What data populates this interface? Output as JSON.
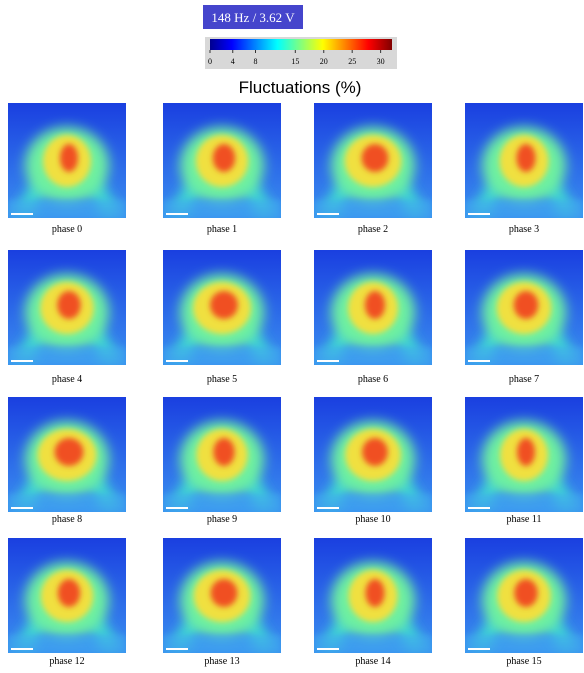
{
  "header": {
    "label": "148 Hz / 3.62 V"
  },
  "colorbar": {
    "title": "Fluctuations (%)",
    "range": [
      0,
      32
    ],
    "ticks": [
      0,
      4,
      8,
      15,
      20,
      25,
      30
    ]
  },
  "panels": [
    {
      "label": "phase 0"
    },
    {
      "label": "phase 1"
    },
    {
      "label": "phase 2"
    },
    {
      "label": "phase 3"
    },
    {
      "label": "phase 4"
    },
    {
      "label": "phase 5"
    },
    {
      "label": "phase 6"
    },
    {
      "label": "phase 7"
    },
    {
      "label": "phase 8"
    },
    {
      "label": "phase 9"
    },
    {
      "label": "phase 10"
    },
    {
      "label": "phase 11"
    },
    {
      "label": "phase 12"
    },
    {
      "label": "phase 13"
    },
    {
      "label": "phase 14"
    },
    {
      "label": "phase 15"
    }
  ]
}
